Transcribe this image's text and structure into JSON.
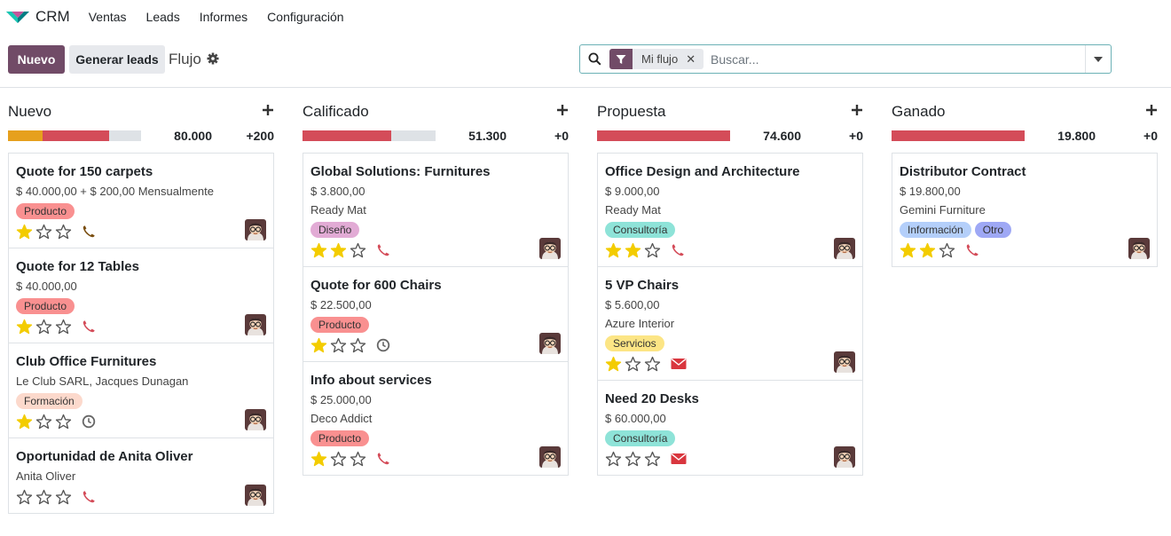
{
  "topbar": {
    "app_name": "CRM",
    "menu": [
      "Ventas",
      "Leads",
      "Informes",
      "Configuración"
    ]
  },
  "control": {
    "new_label": "Nuevo",
    "generate_label": "Generar leads",
    "breadcrumb": "Flujo",
    "facet": "Mi flujo",
    "search_placeholder": "Buscar..."
  },
  "colors": {
    "brand": "#714b67",
    "teal": "#017e84",
    "won": "#28a745",
    "lost": "#dc3545",
    "planned": "#e6a01d",
    "progress_bg": "#dee2e6",
    "star": "#f3cc00"
  },
  "columns": [
    {
      "title": "Nuevo",
      "total": "80.000",
      "count": "+200",
      "progress": [
        {
          "fraction": 0.26,
          "color": "#e6a01d"
        },
        {
          "fraction": 0.5,
          "color": "#d44c59"
        }
      ],
      "cards": [
        {
          "title": "Quote for 150 carpets",
          "lines": [
            "$ 40.000,00 + $ 200,00 Mensualmente"
          ],
          "tags": [
            {
              "label": "Producto",
              "color": "#f99090"
            }
          ],
          "stars": 1,
          "activity": "phone",
          "activity_color": "#7a4e10"
        },
        {
          "title": "Quote for 12 Tables",
          "lines": [
            "$ 40.000,00"
          ],
          "tags": [
            {
              "label": "Producto",
              "color": "#f99090"
            }
          ],
          "stars": 1,
          "activity": "phone",
          "activity_color": "#d44c59"
        },
        {
          "title": "Club Office Furnitures",
          "lines": [
            "Le Club SARL, Jacques Dunagan"
          ],
          "tags": [
            {
              "label": "Formación",
              "color": "#fcd9cc"
            }
          ],
          "stars": 1,
          "activity": "clock",
          "activity_color": "#666666"
        },
        {
          "title": "Oportunidad de Anita Oliver",
          "lines": [
            "Anita Oliver"
          ],
          "tags": [],
          "stars": 0,
          "activity": "phone",
          "activity_color": "#d44c59"
        }
      ]
    },
    {
      "title": "Calificado",
      "total": "51.300",
      "count": "+0",
      "progress": [
        {
          "fraction": 0.667,
          "color": "#d44c59"
        }
      ],
      "cards": [
        {
          "title": "Global Solutions: Furnitures",
          "lines": [
            "$ 3.800,00",
            "Ready Mat"
          ],
          "tags": [
            {
              "label": "Diseño",
              "color": "#e2abd5"
            }
          ],
          "stars": 2,
          "activity": "phone",
          "activity_color": "#d44c59"
        },
        {
          "title": "Quote for 600 Chairs",
          "lines": [
            "$ 22.500,00"
          ],
          "tags": [
            {
              "label": "Producto",
              "color": "#f99090"
            }
          ],
          "stars": 1,
          "activity": "clock",
          "activity_color": "#666666"
        },
        {
          "title": "Info about services",
          "lines": [
            "$ 25.000,00",
            "Deco Addict"
          ],
          "tags": [
            {
              "label": "Producto",
              "color": "#f99090"
            }
          ],
          "stars": 1,
          "activity": "phone",
          "activity_color": "#d44c59"
        }
      ]
    },
    {
      "title": "Propuesta",
      "total": "74.600",
      "count": "+0",
      "progress": [
        {
          "fraction": 1.0,
          "color": "#d44c59"
        }
      ],
      "cards": [
        {
          "title": "Office Design and Architecture",
          "lines": [
            "$ 9.000,00",
            "Ready Mat"
          ],
          "tags": [
            {
              "label": "Consultoría",
              "color": "#8ee3d8"
            }
          ],
          "stars": 2,
          "activity": "phone",
          "activity_color": "#d44c59"
        },
        {
          "title": "5 VP Chairs",
          "lines": [
            "$ 5.600,00",
            "Azure Interior"
          ],
          "tags": [
            {
              "label": "Servicios",
              "color": "#fce585"
            }
          ],
          "stars": 1,
          "activity": "envelope",
          "activity_color": "#d9363e"
        },
        {
          "title": "Need 20 Desks",
          "lines": [
            "$ 60.000,00"
          ],
          "tags": [
            {
              "label": "Consultoría",
              "color": "#8ee3d8"
            }
          ],
          "stars": 0,
          "activity": "envelope",
          "activity_color": "#d9363e"
        }
      ]
    },
    {
      "title": "Ganado",
      "total": "19.800",
      "count": "+0",
      "progress": [
        {
          "fraction": 1.0,
          "color": "#d44c59"
        }
      ],
      "cards": [
        {
          "title": "Distributor Contract",
          "lines": [
            "$ 19.800,00",
            "Gemini Furniture"
          ],
          "tags": [
            {
              "label": "Información",
              "color": "#b4cffa"
            },
            {
              "label": "Otro",
              "color": "#9ea8f5"
            }
          ],
          "stars": 2,
          "activity": "phone",
          "activity_color": "#d44c59"
        }
      ]
    }
  ]
}
